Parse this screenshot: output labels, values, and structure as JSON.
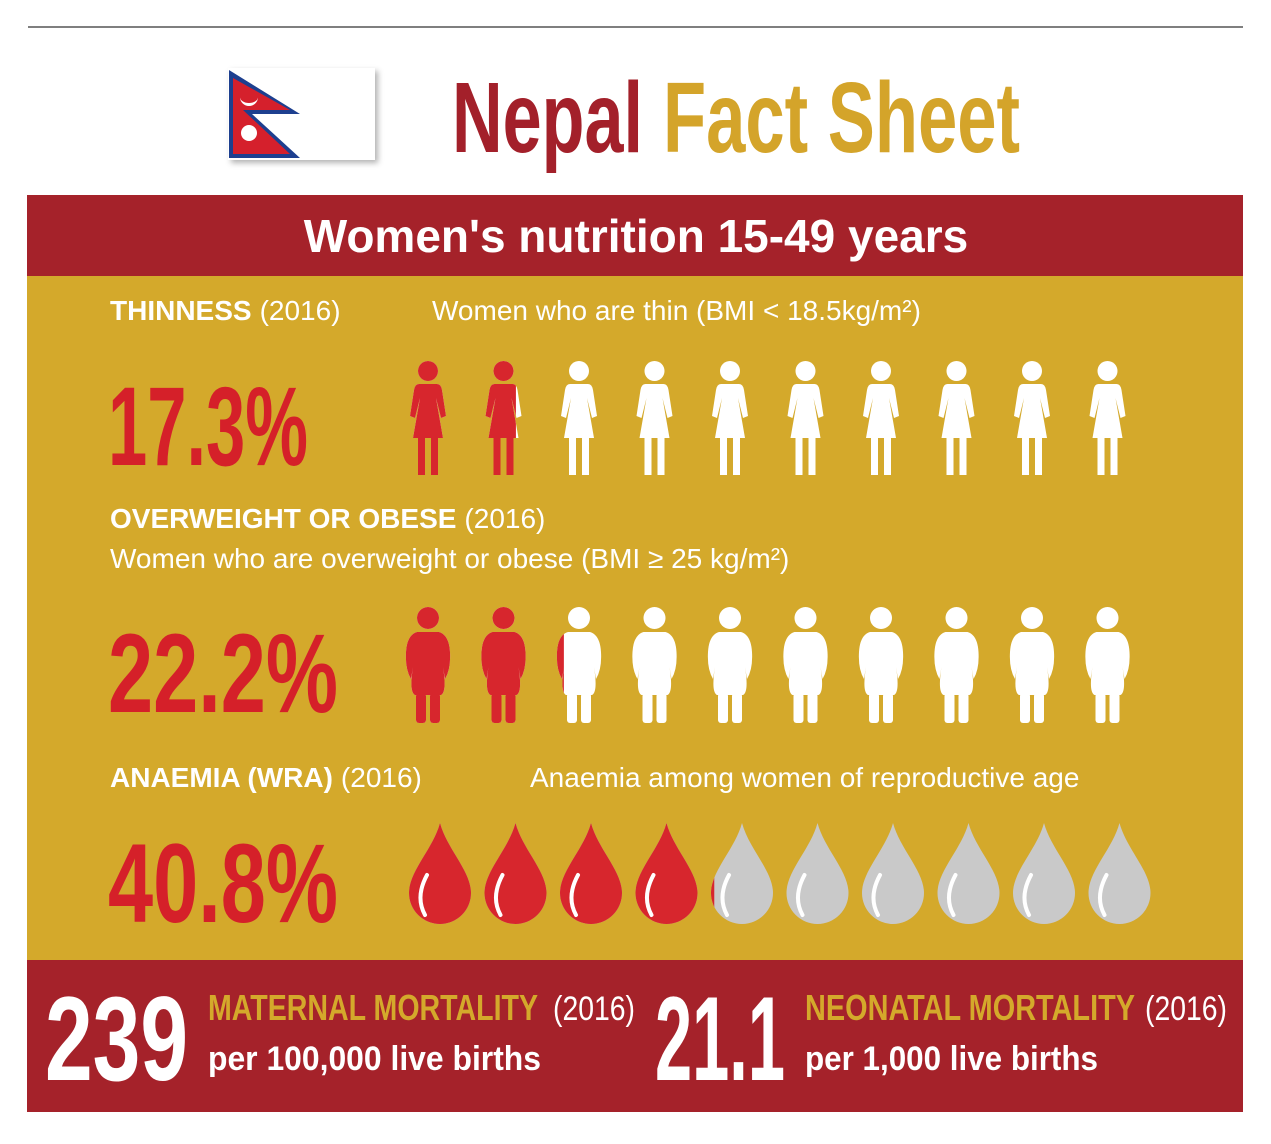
{
  "header": {
    "title_part1": "Nepal",
    "title_part2": "Fact Sheet"
  },
  "panel": {
    "title": "Women's nutrition 15-49 years",
    "indicators": [
      {
        "name": "THINNESS",
        "year": "(2016)",
        "description": "Women who are thin (BMI < 18.5kg/m²)",
        "value": 17.3,
        "value_label": "17.3%"
      },
      {
        "name": "OVERWEIGHT OR OBESE",
        "year": "(2016)",
        "description": "Women who are overweight or obese (BMI ≥ 25 kg/m²)",
        "value": 22.2,
        "value_label": "22.2%"
      },
      {
        "name": "ANAEMIA (WRA)",
        "year": "(2016)",
        "description": "Anaemia among women of reproductive age",
        "value": 40.8,
        "value_label": "40.8%"
      }
    ]
  },
  "footer": [
    {
      "value": 239,
      "label": "MATERNAL MORTALITY",
      "year": "(2016)",
      "unit": "per 100,000 live births"
    },
    {
      "value": 21.1,
      "label": "NEONATAL MORTALITY",
      "year": "(2016)",
      "unit": "per 1,000 live births"
    }
  ]
}
